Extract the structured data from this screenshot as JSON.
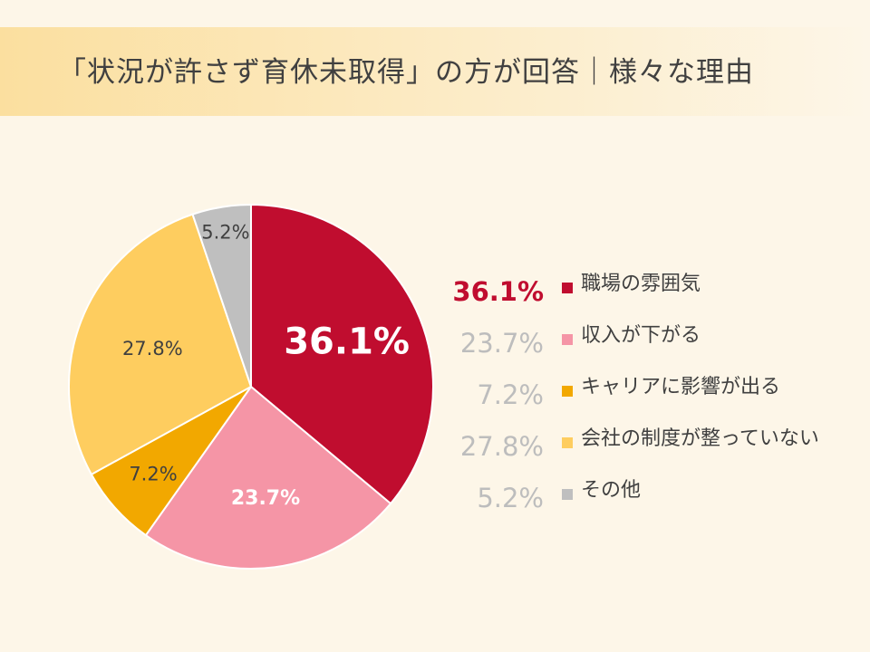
{
  "title": "「状況が許さず育休未取得」の方が回答｜様々な理由",
  "chart_data": {
    "type": "pie",
    "slices": [
      {
        "label": "職場の雰囲気",
        "value": 36.1,
        "display": "36.1%",
        "color": "#c00d2f"
      },
      {
        "label": "収入が下がる",
        "value": 23.7,
        "display": "23.7%",
        "color": "#f595a6"
      },
      {
        "label": "キャリアに影響が出る",
        "value": 7.2,
        "display": "7.2%",
        "color": "#f2a800"
      },
      {
        "label": "会社の制度が整っていない",
        "value": 27.8,
        "display": "27.8%",
        "color": "#fecd5f"
      },
      {
        "label": "その他",
        "value": 5.2,
        "display": "5.2%",
        "color": "#bfbfbf"
      }
    ],
    "highlight_index": 0,
    "start_angle": "top",
    "direction": "clockwise",
    "legend_position": "right"
  }
}
